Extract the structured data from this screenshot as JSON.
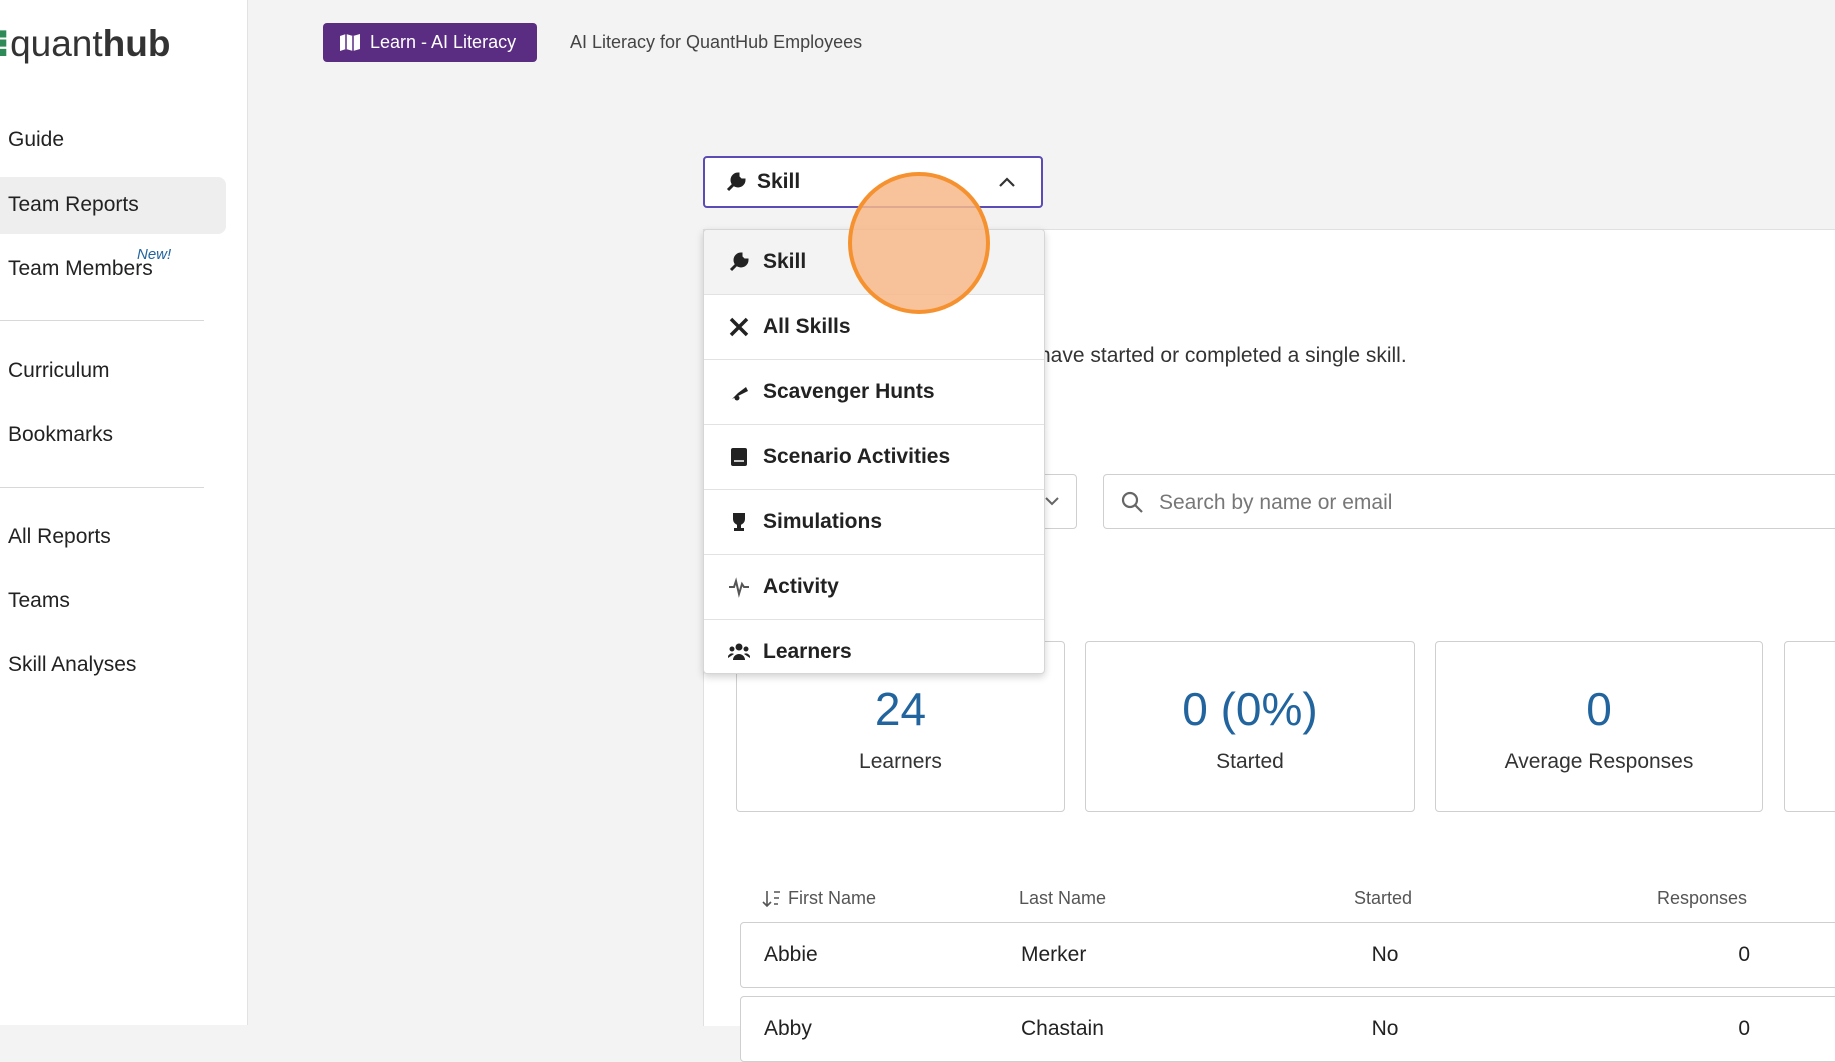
{
  "sidebar": {
    "logo": {
      "light": "quant",
      "bold": "hub"
    },
    "nav": [
      "Guide",
      "Team Reports",
      "Team Members",
      "Curriculum",
      "Bookmarks",
      "All Reports",
      "Teams",
      "Skill Analyses"
    ],
    "new_badge": "New!"
  },
  "header": {
    "badge": "Learn - AI Literacy",
    "subtitle": "AI Literacy for QuantHub Employees"
  },
  "select": {
    "value": "Skill",
    "options": [
      "Skill",
      "All Skills",
      "Scavenger Hunts",
      "Scenario Activities",
      "Simulations",
      "Activity",
      "Learners"
    ]
  },
  "description": "have started or completed a single skill.",
  "search": {
    "placeholder": "Search by name or email"
  },
  "stats": [
    {
      "value": 24,
      "label": "Learners"
    },
    {
      "value": "0 (0%)",
      "label": "Started"
    },
    {
      "value": 0,
      "label": "Average Responses"
    }
  ],
  "table": {
    "columns": [
      "First Name",
      "Last Name",
      "Started",
      "Responses"
    ],
    "rows": [
      [
        "Abbie",
        "Merker",
        "No",
        0
      ],
      [
        "Abby",
        "Chastain",
        "No",
        0
      ]
    ]
  }
}
